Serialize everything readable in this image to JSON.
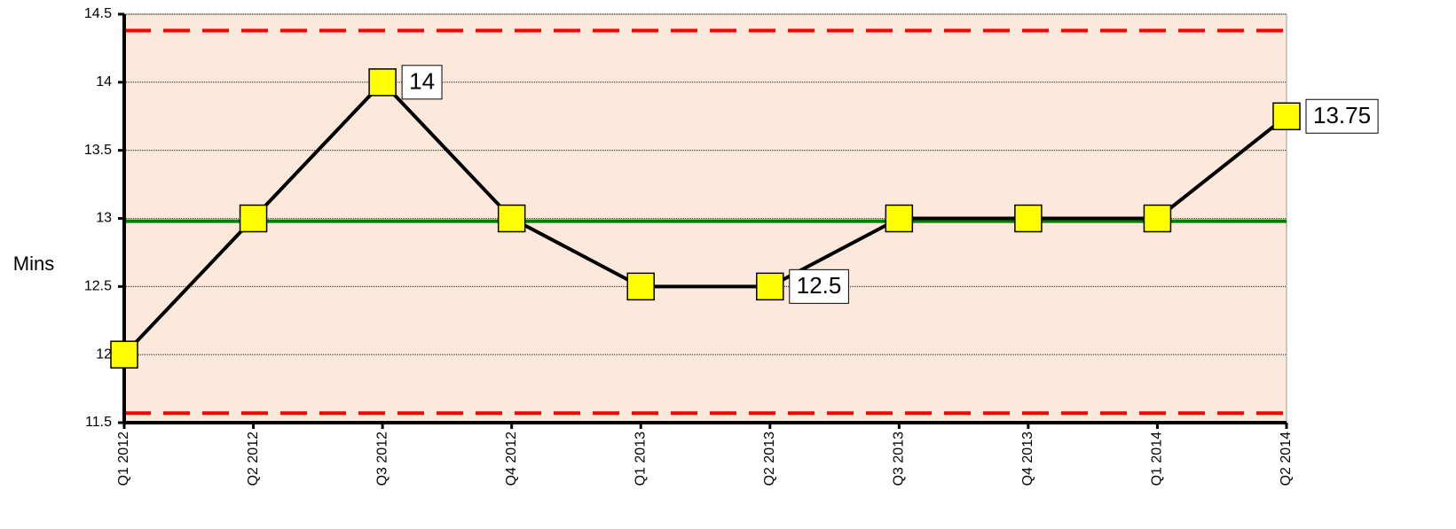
{
  "chart_data": {
    "type": "line",
    "y_label": "Mins",
    "categories": [
      "Q1 2012",
      "Q2 2012",
      "Q3 2012",
      "Q4 2012",
      "Q1 2013",
      "Q2 2013",
      "Q3 2013",
      "Q4 2013",
      "Q1 2014",
      "Q2 2014"
    ],
    "values": [
      12,
      13,
      14,
      13,
      12.5,
      12.5,
      13,
      13,
      13,
      13.75
    ],
    "value_labels": [
      null,
      null,
      "14",
      null,
      null,
      "12.5",
      null,
      null,
      null,
      "13.75"
    ],
    "color": "#000000",
    "marker_color": "#ffff00",
    "ylim": [
      11.5,
      14.5
    ],
    "yticks": [
      11.5,
      12,
      12.5,
      13,
      13.5,
      14,
      14.5
    ],
    "grid": true,
    "background": "#fde9dc",
    "reference_lines": [
      {
        "value": 14.38,
        "color": "#ff0000",
        "style": "dashed"
      },
      {
        "value": 12.98,
        "color": "#008000",
        "style": "solid"
      },
      {
        "value": 11.57,
        "color": "#ff0000",
        "style": "dashed"
      }
    ]
  }
}
